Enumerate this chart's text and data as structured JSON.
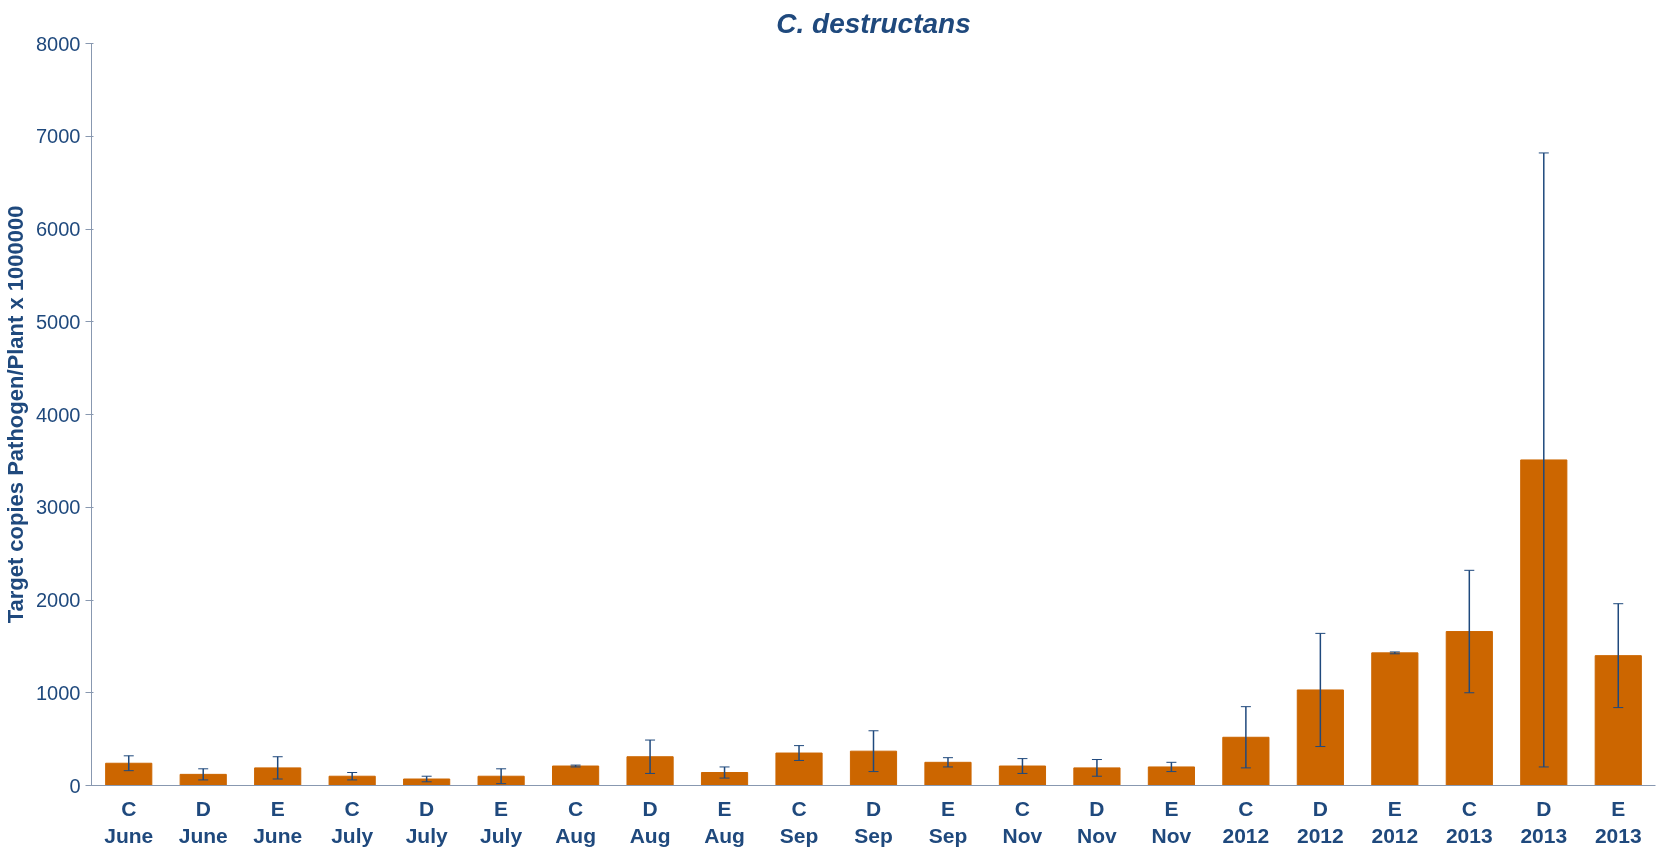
{
  "chart_data": {
    "type": "bar",
    "title": "C. destructans",
    "ylabel": "Target copies Pathogen/Plant x 1000000",
    "categories": [
      "C\nJune",
      "D\nJune",
      "E\nJune",
      "C\nJuly",
      "D\nJuly",
      "E\nJuly",
      "C\nAug",
      "D\nAug",
      "E\nAug",
      "C\nSep",
      "D\nSep",
      "E\nSep",
      "C\nNov",
      "D\nNov",
      "E\nNov",
      "C\n2012",
      "D\n2012",
      "E\n2012",
      "C\n2013",
      "D\n2013",
      "E\n2013"
    ],
    "values": [
      240,
      120,
      190,
      100,
      70,
      100,
      210,
      310,
      140,
      350,
      370,
      250,
      210,
      190,
      200,
      520,
      1030,
      1430,
      1660,
      3510,
      1400
    ],
    "errors": [
      80,
      60,
      120,
      40,
      30,
      80,
      10,
      180,
      60,
      80,
      220,
      50,
      80,
      90,
      50,
      330,
      610,
      10,
      660,
      3310,
      560
    ],
    "color": "#cc6600",
    "ylim": [
      0,
      8000
    ],
    "yticks": [
      0,
      1000,
      2000,
      3000,
      4000,
      5000,
      6000,
      7000,
      8000
    ],
    "grid": false
  }
}
